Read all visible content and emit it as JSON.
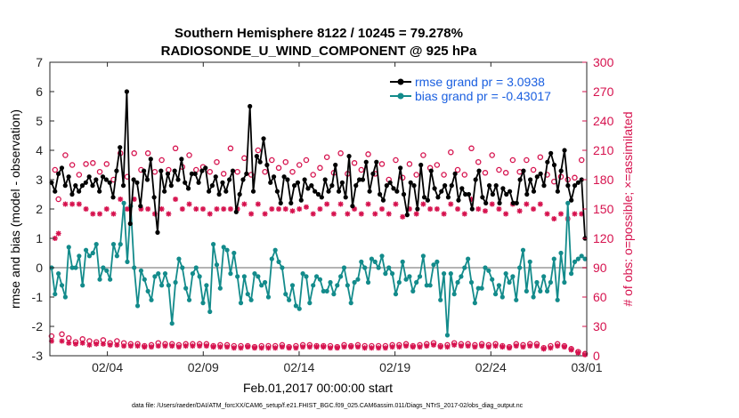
{
  "chart_data": {
    "type": "line",
    "title_line1": "Southern Hemisphere 8122 / 10245 = 79.278%",
    "title_line2": "RADIOSONDE_U_WIND_COMPONENT @ 925 hPa",
    "xlabel": "Feb.01,2017 00:00:00 start",
    "ylabel_left": "rmse and bias (model - observation)",
    "ylabel_right": "# of obs: o=possible; ×=assimilated",
    "footnote": "data file: /Users/raeder/DAI/ATM_forcXX/CAM6_setup/f.e21.FHIST_BGC.f09_025.CAM6assim.011/Diags_NTrS_2017-02/obs_diag_output.nc",
    "x_ticks": [
      {
        "label": "02/04",
        "day": 3
      },
      {
        "label": "02/09",
        "day": 8
      },
      {
        "label": "02/14",
        "day": 13
      },
      {
        "label": "02/19",
        "day": 18
      },
      {
        "label": "02/24",
        "day": 23
      },
      {
        "label": "03/01",
        "day": 28
      }
    ],
    "xlim": [
      0,
      28
    ],
    "ylim_left": [
      -3,
      7
    ],
    "ylim_right": [
      0,
      300
    ],
    "yticks_left": [
      "-3",
      "-2",
      "-1",
      "0",
      "1",
      "2",
      "3",
      "4",
      "5",
      "6",
      "7"
    ],
    "yticks_right": [
      "0",
      "30",
      "60",
      "90",
      "120",
      "150",
      "180",
      "210",
      "240",
      "270",
      "300"
    ],
    "colors": {
      "rmse": "#000000",
      "bias": "#138b8b",
      "obs": "#d6124e",
      "legend_text": "#1a5fe0",
      "zero_line": "#b3b3b3"
    },
    "legend": [
      {
        "label": "rmse grand pr = 3.0938",
        "series": "rmse"
      },
      {
        "label": "bias grand pr = -0.43017",
        "series": "bias"
      }
    ],
    "series": [
      {
        "name": "rmse",
        "values": [
          2.9,
          2.6,
          3.2,
          3.4,
          2.8,
          3.1,
          2.5,
          2.8,
          2.6,
          2.8,
          2.9,
          3.1,
          2.8,
          3.0,
          2.6,
          3.1,
          3.0,
          2.9,
          2.4,
          3.3,
          4.1,
          2.8,
          6.0,
          1.5,
          3.0,
          2.9,
          2.1,
          3.3,
          3.0,
          3.7,
          2.4,
          1.2,
          3.3,
          2.6,
          3.2,
          2.8,
          3.3,
          3.0,
          3.7,
          2.9,
          2.7,
          3.2,
          3.2,
          2.9,
          3.3,
          3.4,
          2.6,
          2.8,
          3.1,
          2.5,
          2.9,
          2.6,
          3.0,
          3.3,
          1.9,
          2.5,
          3.0,
          3.2,
          5.5,
          2.6,
          3.8,
          3.6,
          4.4,
          3.5,
          2.9,
          3.1,
          2.6,
          2.2,
          3.1,
          3.0,
          2.2,
          2.8,
          2.9,
          2.3,
          3.0,
          2.7,
          2.8,
          2.6,
          2.5,
          2.4,
          3.0,
          2.6,
          2.8,
          3.5,
          2.6,
          2.9,
          2.4,
          3.8,
          2.1,
          2.8,
          3.0,
          3.0,
          3.6,
          2.6,
          3.2,
          3.6,
          2.5,
          2.3,
          2.8,
          2.9,
          2.7,
          2.6,
          3.4,
          2.5,
          1.8,
          2.9,
          2.8,
          2.0,
          3.5,
          2.4,
          2.3,
          3.3,
          2.7,
          2.4,
          2.6,
          2.8,
          2.4,
          2.8,
          3.2,
          2.3,
          2.7,
          2.5,
          2.5,
          2.0,
          3.0,
          3.3,
          2.4,
          2.2,
          2.8,
          2.5,
          2.8,
          2.2,
          2.7,
          2.5,
          2.6,
          2.2,
          2.2,
          3.0,
          3.3,
          2.5,
          3.0,
          2.6,
          3.1,
          3.2,
          2.8,
          3.6,
          3.9,
          3.5,
          2.6,
          3.3,
          4.0,
          2.8,
          2.3,
          2.8,
          2.9,
          3.0,
          1.0
        ]
      },
      {
        "name": "bias",
        "values": [
          0.0,
          -0.9,
          -0.2,
          -0.6,
          -1.0,
          0.7,
          0.0,
          0.0,
          0.4,
          -0.6,
          0.6,
          0.4,
          0.5,
          0.8,
          -0.4,
          0.0,
          -0.1,
          -0.4,
          0.8,
          0.4,
          0.8,
          2.2,
          0.2,
          2.1,
          0.0,
          -1.3,
          -0.1,
          -0.4,
          -0.8,
          -1.1,
          -0.3,
          -0.2,
          -0.6,
          -0.2,
          -0.6,
          -1.9,
          -0.5,
          0.3,
          0.0,
          -0.7,
          -1.1,
          -0.2,
          0.0,
          -0.3,
          -1.2,
          -0.6,
          -1.5,
          0.8,
          0.1,
          -0.7,
          0.7,
          0.6,
          -0.2,
          0.5,
          -0.3,
          -1.2,
          -0.3,
          -0.9,
          -1.1,
          -0.2,
          -0.3,
          -0.6,
          -0.5,
          -1.0,
          0.3,
          0.6,
          0.2,
          0.0,
          -0.9,
          -1.1,
          -0.6,
          -1.3,
          -1.4,
          -0.2,
          -0.3,
          -1.2,
          -0.6,
          -0.3,
          -0.4,
          -0.8,
          -0.8,
          -0.5,
          -0.9,
          -0.6,
          -0.3,
          0.0,
          -0.6,
          -1.2,
          -0.5,
          -0.4,
          0.2,
          0.0,
          -0.5,
          0.3,
          0.2,
          0.0,
          0.4,
          -0.2,
          0.0,
          -0.2,
          -0.9,
          -0.5,
          0.2,
          -0.4,
          -0.3,
          -0.8,
          -0.5,
          -0.3,
          0.4,
          -0.6,
          -0.6,
          0.1,
          0.2,
          -1.1,
          -0.2,
          -2.3,
          -0.2,
          -0.9,
          -0.5,
          -0.3,
          0.0,
          0.3,
          -0.5,
          -1.2,
          -0.7,
          -0.7,
          0.0,
          -0.1,
          -0.4,
          -0.9,
          -0.6,
          -1.0,
          -0.2,
          -0.5,
          -0.3,
          -1.1,
          0.0,
          0.6,
          -0.8,
          0.2,
          -1.0,
          -0.5,
          -0.8,
          -0.3,
          -0.8,
          -0.5,
          0.3,
          -1.1,
          0.5,
          -0.5,
          2.2,
          -0.2,
          0.2,
          0.3,
          0.4,
          0.3
        ]
      },
      {
        "name": "obs_possible",
        "values": [
          20,
          190,
          160,
          22,
          205,
          18,
          195,
          14,
          185,
          17,
          196,
          15,
          197,
          14,
          188,
          16,
          196,
          13,
          180,
          15,
          207,
          13,
          183,
          12,
          207,
          12,
          190,
          10,
          207,
          11,
          188,
          13,
          200,
          12,
          190,
          12,
          212,
          11,
          193,
          12,
          205,
          12,
          190,
          12,
          193,
          12,
          188,
          10,
          198,
          11,
          186,
          11,
          212,
          10,
          188,
          10,
          202,
          10,
          185,
          9,
          210,
          10,
          188,
          10,
          200,
          10,
          192,
          11,
          198,
          9,
          188,
          10,
          195,
          11,
          200,
          11,
          185,
          10,
          192,
          10,
          203,
          10,
          187,
          9,
          207,
          11,
          186,
          10,
          197,
          11,
          190,
          10,
          206,
          10,
          186,
          10,
          196,
          10,
          180,
          11,
          200,
          11,
          182,
          12,
          196,
          10,
          185,
          11,
          205,
          12,
          192,
          13,
          195,
          10,
          185,
          11,
          208,
          13,
          190,
          12,
          185,
          12,
          212,
          11,
          198,
          12,
          187,
          11,
          205,
          12,
          190,
          10,
          187,
          9,
          200,
          12,
          188,
          11,
          200,
          12,
          190,
          12,
          203,
          8,
          185,
          10,
          178,
          12,
          183,
          10,
          180,
          7,
          182,
          4,
          200,
          2
        ]
      },
      {
        "name": "obs_assimilated",
        "values": [
          15,
          120,
          125,
          15,
          155,
          13,
          155,
          12,
          155,
          13,
          150,
          11,
          145,
          12,
          145,
          12,
          150,
          11,
          145,
          11,
          160,
          10,
          150,
          10,
          160,
          10,
          150,
          9,
          150,
          9,
          145,
          10,
          150,
          10,
          145,
          10,
          160,
          9,
          150,
          10,
          155,
          10,
          150,
          10,
          150,
          10,
          145,
          9,
          150,
          9,
          150,
          9,
          150,
          8,
          150,
          8,
          155,
          9,
          145,
          8,
          155,
          8,
          145,
          8,
          150,
          8,
          150,
          9,
          150,
          8,
          148,
          8,
          150,
          9,
          152,
          9,
          145,
          9,
          150,
          9,
          155,
          8,
          145,
          8,
          155,
          9,
          145,
          9,
          150,
          9,
          145,
          8,
          155,
          8,
          145,
          8,
          150,
          8,
          145,
          9,
          155,
          9,
          142,
          10,
          150,
          9,
          145,
          9,
          155,
          10,
          150,
          11,
          150,
          9,
          145,
          9,
          155,
          11,
          150,
          10,
          145,
          10,
          160,
          9,
          150,
          10,
          148,
          9,
          155,
          10,
          150,
          9,
          145,
          8,
          155,
          10,
          148,
          9,
          155,
          10,
          150,
          10,
          155,
          7,
          145,
          8,
          140,
          10,
          145,
          9,
          140,
          6,
          145,
          3,
          145,
          1
        ]
      }
    ]
  }
}
